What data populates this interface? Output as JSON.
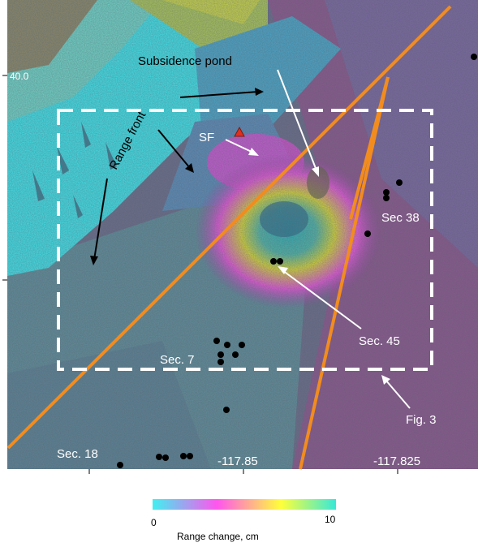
{
  "map": {
    "axis": {
      "lat_label": "40.0",
      "lon_labels": [
        "-117.85",
        "-117.825"
      ]
    },
    "annotations": {
      "subsidence_pond": "Subsidence pond",
      "range_front": "Range front",
      "sf": "SF",
      "sec38": "Sec 38",
      "sec45": "Sec. 45",
      "sec7": "Sec. 7",
      "sec18": "Sec. 18",
      "fig3": "Fig. 3"
    },
    "colors": {
      "fault_line": "#f28c1e",
      "box_dash": "#ffffff",
      "well": "#000000",
      "marker_sf": "#e0301e"
    }
  },
  "colorbar": {
    "min_label": "0",
    "max_label": "10",
    "title": "Range change, cm",
    "stops": [
      "#3ff0f0",
      "#ff55ee",
      "#ffff3a",
      "#38e8d8"
    ]
  }
}
